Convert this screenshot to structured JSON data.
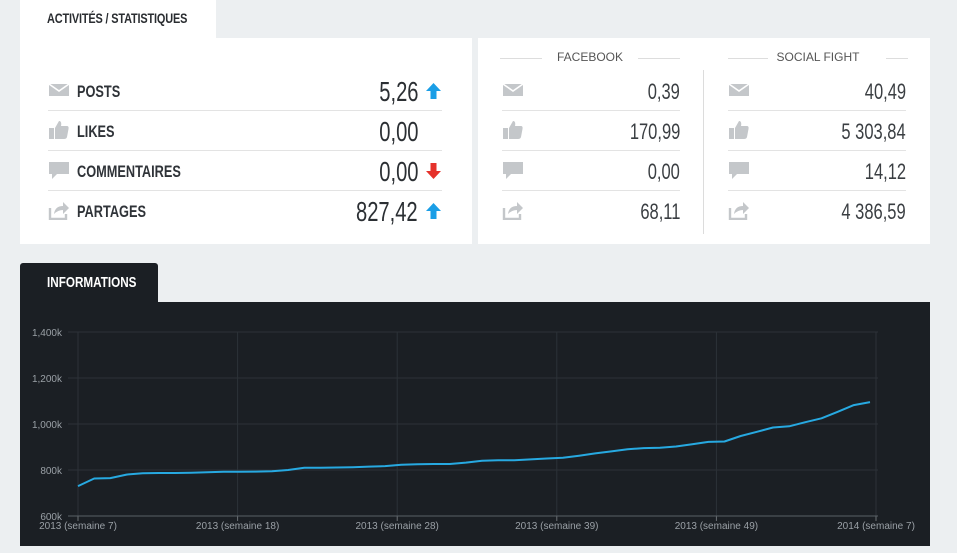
{
  "tabs": {
    "activites": "ACTIVITÉS / STATISTIQUES",
    "informations": "INFORMATIONS"
  },
  "stats": [
    {
      "icon": "envelope-icon",
      "label": "POSTS",
      "value": "5,26",
      "trend": "up"
    },
    {
      "icon": "thumbs-up-icon",
      "label": "LIKES",
      "value": "0,00",
      "trend": "none"
    },
    {
      "icon": "comment-icon",
      "label": "COMMENTAIRES",
      "value": "0,00",
      "trend": "down"
    },
    {
      "icon": "share-icon",
      "label": "PARTAGES",
      "value": "827,42",
      "trend": "up"
    }
  ],
  "comparison": {
    "facebook": {
      "title": "FACEBOOK",
      "values": [
        "0,39",
        "170,99",
        "0,00",
        "68,11"
      ]
    },
    "social_fight": {
      "title": "SOCIAL FIGHT",
      "values": [
        "40,49",
        "5 303,84",
        "14,12",
        "4 386,59"
      ]
    }
  },
  "colors": {
    "trend_up": "#1a9ee6",
    "trend_down": "#e5322b",
    "chart_line": "#27a9e1",
    "chart_bg": "#1b1f24",
    "icon_gray": "#c4c7ca"
  },
  "chart_data": {
    "type": "line",
    "y_ticks": [
      "600k",
      "800k",
      "1,000k",
      "1,200k",
      "1,400k"
    ],
    "ylim": [
      600,
      1400
    ],
    "y_unit": "k",
    "x_ticks": [
      "2013 (semaine 7)",
      "2013 (semaine 18)",
      "2013 (semaine 28)",
      "2013 (semaine 39)",
      "2013 (semaine 49)",
      "2014 (semaine 7)"
    ],
    "grid": true,
    "series": [
      {
        "values": [
          730,
          763,
          765,
          780,
          786,
          787,
          787,
          788,
          790,
          792,
          792,
          793,
          795,
          800,
          810,
          810,
          811,
          812,
          815,
          817,
          823,
          825,
          826,
          826,
          832,
          840,
          842,
          842,
          846,
          850,
          853,
          862,
          872,
          881,
          890,
          895,
          897,
          902,
          912,
          922,
          924,
          948,
          966,
          985,
          990,
          1008,
          1025,
          1053,
          1082,
          1095
        ]
      }
    ]
  }
}
